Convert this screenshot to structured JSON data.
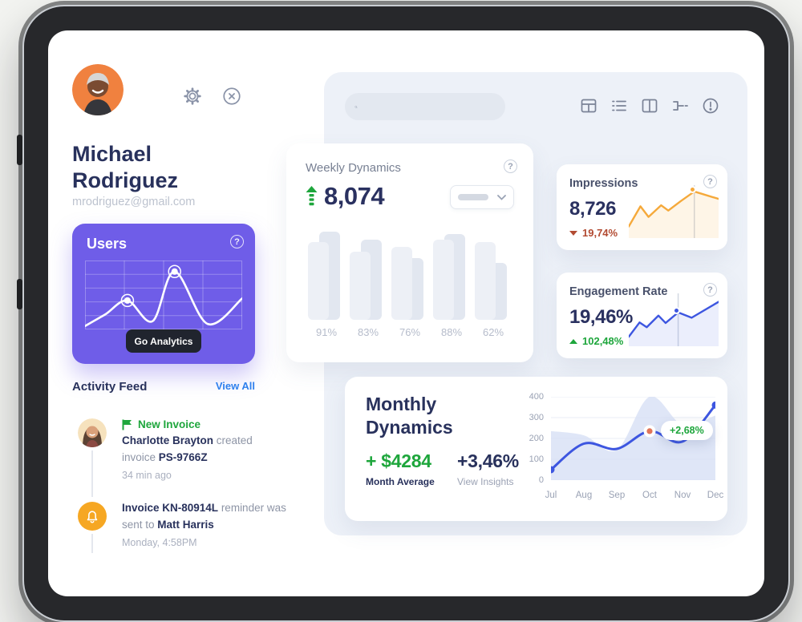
{
  "profile": {
    "first_name": "Michael",
    "last_name": "Rodriguez",
    "email": "mrodriguez@gmail.com"
  },
  "header": {
    "icon_names": [
      "grid-view-icon",
      "list-view-icon",
      "columns-view-icon",
      "merge-flow-icon",
      "alert-circle-icon"
    ],
    "search_placeholder": ""
  },
  "users_card": {
    "title": "Users",
    "button_label": "Go Analytics"
  },
  "activity": {
    "title": "Activity Feed",
    "view_all": "View All",
    "item1": {
      "badge": "New Invoice",
      "name": "Charlotte Brayton",
      "mid": " created invoice ",
      "code": "PS-9766Z",
      "time": "34 min ago"
    },
    "item2": {
      "code": "Invoice KN-80914L",
      "mid": " reminder was sent to ",
      "name": "Matt Harris",
      "time": "Monday, 4:58PM"
    }
  },
  "weekly": {
    "title": "Weekly Dynamics",
    "value": "8,074"
  },
  "impressions": {
    "title": "Impressions",
    "value": "8,726",
    "delta": "19,74%",
    "direction": "down"
  },
  "engagement": {
    "title": "Engagement Rate",
    "value": "19,46%",
    "delta": "102,48%",
    "direction": "up"
  },
  "monthly": {
    "title_line1": "Monthly",
    "title_line2": "Dynamics",
    "average_value": "+ $4284",
    "average_label": "Month Average",
    "insight_value": "+3,46%",
    "insight_label": "View Insights"
  },
  "colors": {
    "purple": "#6f5de8",
    "navy": "#28315c",
    "green": "#1ea63c",
    "red": "#b24b32",
    "link_blue": "#2f80ed",
    "orange_line": "#f5a93b",
    "blue_line": "#3d56e0",
    "panel_bg": "#edf1f8",
    "highlight_dot": "#e0755a"
  },
  "chart_data": [
    {
      "id": "users-sparkline",
      "type": "line",
      "decorative": true,
      "points": [
        [
          0,
          95
        ],
        [
          13,
          78
        ],
        [
          27,
          58
        ],
        [
          43,
          88
        ],
        [
          57,
          16
        ],
        [
          78,
          92
        ],
        [
          100,
          55
        ]
      ],
      "marker_indexes": [
        2,
        4
      ],
      "grid": true,
      "color": "#ffffff"
    },
    {
      "id": "weekly-bars",
      "type": "bar",
      "categories": [
        "91%",
        "83%",
        "76%",
        "88%",
        "62%"
      ],
      "series": [
        {
          "name": "back",
          "values": [
            88,
            80,
            62,
            86,
            57
          ]
        },
        {
          "name": "front",
          "values": [
            78,
            68,
            73,
            80,
            78
          ]
        }
      ],
      "ylim": [
        0,
        100
      ],
      "note": "decorative heights, percent of chart area"
    },
    {
      "id": "impressions-sparkline",
      "type": "line",
      "color": "#f5a93b",
      "points": [
        [
          0,
          78
        ],
        [
          13,
          40
        ],
        [
          22,
          60
        ],
        [
          36,
          38
        ],
        [
          44,
          48
        ],
        [
          58,
          30
        ],
        [
          73,
          12
        ],
        [
          100,
          26
        ]
      ],
      "marker_index": 6,
      "vline": true
    },
    {
      "id": "engagement-sparkline",
      "type": "line",
      "color": "#3d56e0",
      "points": [
        [
          0,
          82
        ],
        [
          12,
          55
        ],
        [
          20,
          64
        ],
        [
          33,
          42
        ],
        [
          41,
          56
        ],
        [
          55,
          36
        ],
        [
          70,
          46
        ],
        [
          100,
          16
        ]
      ],
      "marker_index": 5,
      "vline": true
    },
    {
      "id": "monthly-dynamics",
      "type": "area+line",
      "x": [
        "Jul",
        "Aug",
        "Sep",
        "Oct",
        "Nov",
        "Dec"
      ],
      "line_values": [
        50,
        175,
        150,
        235,
        185,
        360
      ],
      "area_values": [
        235,
        215,
        145,
        400,
        265,
        310
      ],
      "ylim": [
        0,
        400
      ],
      "yticks": [
        400,
        300,
        200,
        100,
        0
      ],
      "highlight_index": 3,
      "tooltip_text": "+2,68%",
      "grid": true,
      "legend": "none"
    }
  ]
}
